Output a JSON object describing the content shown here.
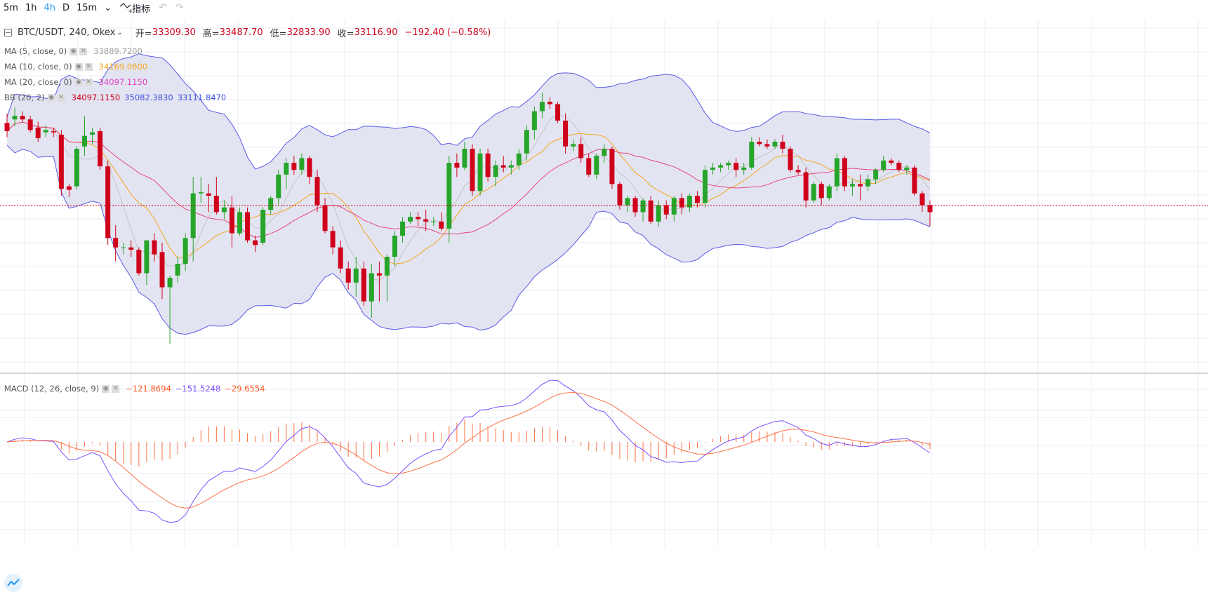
{
  "toolbar": {
    "timeframes": [
      "5m",
      "1h",
      "4h",
      "D",
      "15m"
    ],
    "active": "4h",
    "indicators_label": "指标",
    "undo_icon": "undo-icon",
    "redo_icon": "redo-icon"
  },
  "header": {
    "symbol": "BTC/USDT, 240, Okex",
    "open_label": "开=",
    "open": "33309.30",
    "high_label": "高=",
    "high": "33487.70",
    "low_label": "低=",
    "low": "32833.90",
    "close_label": "收=",
    "close": "33116.90",
    "change": "−192.40 (−0.58%)"
  },
  "indicators": [
    {
      "name": "MA (5, close, 0)",
      "values": [
        "33889.7200"
      ],
      "colors": [
        "#9e9e9e"
      ]
    },
    {
      "name": "MA (10, close, 0)",
      "values": [
        "34169.0600"
      ],
      "colors": [
        "#f5a623"
      ]
    },
    {
      "name": "MA (20, close, 0)",
      "values": [
        "34097.1150"
      ],
      "colors": [
        "#e040c0"
      ]
    },
    {
      "name": "BB (20, 2)",
      "values": [
        "34097.1150",
        "35082.3830",
        "33111.8470"
      ],
      "colors": [
        "#d0021b",
        "#3f51e0",
        "#3f51e0"
      ]
    }
  ],
  "macd": {
    "name": "MACD (12, 26, close, 9)",
    "values": [
      "−121.8694",
      "−151.5248",
      "−29.6554"
    ],
    "colors": [
      "#ff5722",
      "#7c4dff",
      "#ff5722"
    ]
  },
  "colors": {
    "up": "#26a52a",
    "down": "#d0021b",
    "bb_fill": "#e3e4f1",
    "bb_line": "#5a5ae8",
    "ma5": "#c4c4c4",
    "ma10": "#f5a623",
    "ma20": "#e8467c",
    "macd": "#7c4dff",
    "signal": "#ff7043",
    "grid": "#e8eef4"
  },
  "chart_data": {
    "type": "candlestick",
    "note_units": "price",
    "candles": [
      {
        "o": 33820,
        "h": 33900,
        "l": 33700,
        "c": 33750
      },
      {
        "o": 33850,
        "h": 33950,
        "l": 33790,
        "c": 33880
      },
      {
        "o": 33880,
        "h": 33920,
        "l": 33830,
        "c": 33850
      },
      {
        "o": 33850,
        "h": 33880,
        "l": 33740,
        "c": 33760
      },
      {
        "o": 33780,
        "h": 33830,
        "l": 33660,
        "c": 33690
      },
      {
        "o": 33740,
        "h": 33800,
        "l": 33700,
        "c": 33760
      },
      {
        "o": 33750,
        "h": 33780,
        "l": 33700,
        "c": 33740
      },
      {
        "o": 33720,
        "h": 33760,
        "l": 33200,
        "c": 33260
      },
      {
        "o": 33280,
        "h": 33300,
        "l": 33190,
        "c": 33250
      },
      {
        "o": 33280,
        "h": 33620,
        "l": 33250,
        "c": 33600
      },
      {
        "o": 33620,
        "h": 33880,
        "l": 33540,
        "c": 33710
      },
      {
        "o": 33720,
        "h": 33780,
        "l": 33640,
        "c": 33740
      },
      {
        "o": 33750,
        "h": 33780,
        "l": 33420,
        "c": 33450
      },
      {
        "o": 33450,
        "h": 33500,
        "l": 32780,
        "c": 32840
      },
      {
        "o": 32840,
        "h": 32950,
        "l": 32640,
        "c": 32760
      },
      {
        "o": 32760,
        "h": 32800,
        "l": 32700,
        "c": 32760
      },
      {
        "o": 32760,
        "h": 32820,
        "l": 32680,
        "c": 32740
      },
      {
        "o": 32740,
        "h": 32760,
        "l": 32520,
        "c": 32540
      },
      {
        "o": 32540,
        "h": 32800,
        "l": 32440,
        "c": 32820
      },
      {
        "o": 32820,
        "h": 32880,
        "l": 32640,
        "c": 32700
      },
      {
        "o": 32720,
        "h": 32800,
        "l": 32320,
        "c": 32420
      },
      {
        "o": 32420,
        "h": 32520,
        "l": 31940,
        "c": 32500
      },
      {
        "o": 32520,
        "h": 32680,
        "l": 32460,
        "c": 32620
      },
      {
        "o": 32620,
        "h": 32880,
        "l": 32560,
        "c": 32840
      },
      {
        "o": 32840,
        "h": 33360,
        "l": 32640,
        "c": 33220
      },
      {
        "o": 33220,
        "h": 33360,
        "l": 33140,
        "c": 33230
      },
      {
        "o": 33220,
        "h": 33300,
        "l": 33060,
        "c": 33200
      },
      {
        "o": 33200,
        "h": 33360,
        "l": 33040,
        "c": 33060
      },
      {
        "o": 33060,
        "h": 33160,
        "l": 33000,
        "c": 33100
      },
      {
        "o": 33100,
        "h": 33200,
        "l": 32760,
        "c": 32880
      },
      {
        "o": 32880,
        "h": 33100,
        "l": 32860,
        "c": 33060
      },
      {
        "o": 33060,
        "h": 33100,
        "l": 32800,
        "c": 32820
      },
      {
        "o": 32820,
        "h": 32860,
        "l": 32720,
        "c": 32780
      },
      {
        "o": 32800,
        "h": 33100,
        "l": 32780,
        "c": 33080
      },
      {
        "o": 33080,
        "h": 33200,
        "l": 33040,
        "c": 33180
      },
      {
        "o": 33180,
        "h": 33420,
        "l": 33120,
        "c": 33380
      },
      {
        "o": 33380,
        "h": 33520,
        "l": 33260,
        "c": 33480
      },
      {
        "o": 33480,
        "h": 33540,
        "l": 33380,
        "c": 33420
      },
      {
        "o": 33420,
        "h": 33560,
        "l": 33380,
        "c": 33520
      },
      {
        "o": 33520,
        "h": 33540,
        "l": 33300,
        "c": 33360
      },
      {
        "o": 33360,
        "h": 33420,
        "l": 33060,
        "c": 33120
      },
      {
        "o": 33120,
        "h": 33180,
        "l": 32880,
        "c": 32900
      },
      {
        "o": 32900,
        "h": 32940,
        "l": 32700,
        "c": 32760
      },
      {
        "o": 32760,
        "h": 32820,
        "l": 32540,
        "c": 32580
      },
      {
        "o": 32580,
        "h": 32640,
        "l": 32400,
        "c": 32460
      },
      {
        "o": 32460,
        "h": 32680,
        "l": 32340,
        "c": 32580
      },
      {
        "o": 32580,
        "h": 32640,
        "l": 32260,
        "c": 32300
      },
      {
        "o": 32300,
        "h": 32620,
        "l": 32160,
        "c": 32540
      },
      {
        "o": 32540,
        "h": 32640,
        "l": 32300,
        "c": 32520
      },
      {
        "o": 32520,
        "h": 32700,
        "l": 32300,
        "c": 32680
      },
      {
        "o": 32680,
        "h": 32900,
        "l": 32600,
        "c": 32860
      },
      {
        "o": 32860,
        "h": 33020,
        "l": 32800,
        "c": 32980
      },
      {
        "o": 32980,
        "h": 33060,
        "l": 32960,
        "c": 33020
      },
      {
        "o": 33020,
        "h": 33060,
        "l": 32940,
        "c": 33000
      },
      {
        "o": 33000,
        "h": 33080,
        "l": 32900,
        "c": 32980
      },
      {
        "o": 32980,
        "h": 33020,
        "l": 32940,
        "c": 32980
      },
      {
        "o": 32980,
        "h": 33060,
        "l": 32900,
        "c": 32920
      },
      {
        "o": 32920,
        "h": 33540,
        "l": 32800,
        "c": 33480
      },
      {
        "o": 33480,
        "h": 33560,
        "l": 33360,
        "c": 33440
      },
      {
        "o": 33440,
        "h": 33660,
        "l": 33420,
        "c": 33600
      },
      {
        "o": 33600,
        "h": 33640,
        "l": 33200,
        "c": 33240
      },
      {
        "o": 33240,
        "h": 33600,
        "l": 33200,
        "c": 33560
      },
      {
        "o": 33560,
        "h": 33600,
        "l": 33320,
        "c": 33360
      },
      {
        "o": 33360,
        "h": 33500,
        "l": 33280,
        "c": 33460
      },
      {
        "o": 33460,
        "h": 33540,
        "l": 33400,
        "c": 33440
      },
      {
        "o": 33440,
        "h": 33500,
        "l": 33380,
        "c": 33460
      },
      {
        "o": 33460,
        "h": 33600,
        "l": 33420,
        "c": 33560
      },
      {
        "o": 33560,
        "h": 33800,
        "l": 33500,
        "c": 33760
      },
      {
        "o": 33760,
        "h": 33960,
        "l": 33680,
        "c": 33920
      },
      {
        "o": 33920,
        "h": 34080,
        "l": 33860,
        "c": 34000
      },
      {
        "o": 34000,
        "h": 34040,
        "l": 33940,
        "c": 33980
      },
      {
        "o": 33980,
        "h": 34000,
        "l": 33820,
        "c": 33840
      },
      {
        "o": 33840,
        "h": 33900,
        "l": 33560,
        "c": 33620
      },
      {
        "o": 33620,
        "h": 33680,
        "l": 33580,
        "c": 33640
      },
      {
        "o": 33640,
        "h": 33700,
        "l": 33480,
        "c": 33520
      },
      {
        "o": 33520,
        "h": 33560,
        "l": 33360,
        "c": 33380
      },
      {
        "o": 33380,
        "h": 33560,
        "l": 33340,
        "c": 33540
      },
      {
        "o": 33540,
        "h": 33640,
        "l": 33480,
        "c": 33600
      },
      {
        "o": 33600,
        "h": 33620,
        "l": 33260,
        "c": 33300
      },
      {
        "o": 33300,
        "h": 33320,
        "l": 33080,
        "c": 33120
      },
      {
        "o": 33120,
        "h": 33200,
        "l": 33060,
        "c": 33180
      },
      {
        "o": 33180,
        "h": 33200,
        "l": 33020,
        "c": 33060
      },
      {
        "o": 33060,
        "h": 33180,
        "l": 32980,
        "c": 33160
      },
      {
        "o": 33160,
        "h": 33200,
        "l": 32960,
        "c": 32980
      },
      {
        "o": 32980,
        "h": 33160,
        "l": 32940,
        "c": 33120
      },
      {
        "o": 33120,
        "h": 33160,
        "l": 33000,
        "c": 33040
      },
      {
        "o": 33040,
        "h": 33200,
        "l": 32980,
        "c": 33180
      },
      {
        "o": 33180,
        "h": 33220,
        "l": 33040,
        "c": 33100
      },
      {
        "o": 33100,
        "h": 33220,
        "l": 33060,
        "c": 33200
      },
      {
        "o": 33200,
        "h": 33240,
        "l": 33100,
        "c": 33140
      },
      {
        "o": 33140,
        "h": 33460,
        "l": 33100,
        "c": 33420
      },
      {
        "o": 33420,
        "h": 33480,
        "l": 33380,
        "c": 33440
      },
      {
        "o": 33440,
        "h": 33480,
        "l": 33400,
        "c": 33460
      },
      {
        "o": 33460,
        "h": 33500,
        "l": 33420,
        "c": 33480
      },
      {
        "o": 33480,
        "h": 33520,
        "l": 33360,
        "c": 33420
      },
      {
        "o": 33420,
        "h": 33480,
        "l": 33380,
        "c": 33440
      },
      {
        "o": 33440,
        "h": 33700,
        "l": 33420,
        "c": 33660
      },
      {
        "o": 33660,
        "h": 33700,
        "l": 33620,
        "c": 33640
      },
      {
        "o": 33640,
        "h": 33680,
        "l": 33600,
        "c": 33620
      },
      {
        "o": 33620,
        "h": 33680,
        "l": 33600,
        "c": 33660
      },
      {
        "o": 33660,
        "h": 33720,
        "l": 33560,
        "c": 33600
      },
      {
        "o": 33600,
        "h": 33620,
        "l": 33400,
        "c": 33420
      },
      {
        "o": 33420,
        "h": 33460,
        "l": 33380,
        "c": 33400
      },
      {
        "o": 33400,
        "h": 33440,
        "l": 33100,
        "c": 33160
      },
      {
        "o": 33160,
        "h": 33320,
        "l": 33140,
        "c": 33300
      },
      {
        "o": 33300,
        "h": 33320,
        "l": 33120,
        "c": 33180
      },
      {
        "o": 33180,
        "h": 33300,
        "l": 33160,
        "c": 33280
      },
      {
        "o": 33280,
        "h": 33560,
        "l": 33240,
        "c": 33520
      },
      {
        "o": 33520,
        "h": 33540,
        "l": 33240,
        "c": 33280
      },
      {
        "o": 33280,
        "h": 33340,
        "l": 33200,
        "c": 33300
      },
      {
        "o": 33300,
        "h": 33380,
        "l": 33160,
        "c": 33280
      },
      {
        "o": 33280,
        "h": 33380,
        "l": 33240,
        "c": 33340
      },
      {
        "o": 33340,
        "h": 33440,
        "l": 33300,
        "c": 33420
      },
      {
        "o": 33420,
        "h": 33540,
        "l": 33400,
        "c": 33500
      },
      {
        "o": 33500,
        "h": 33520,
        "l": 33460,
        "c": 33480
      },
      {
        "o": 33480,
        "h": 33500,
        "l": 33400,
        "c": 33420
      },
      {
        "o": 33420,
        "h": 33460,
        "l": 33380,
        "c": 33440
      },
      {
        "o": 33440,
        "h": 33460,
        "l": 33200,
        "c": 33220
      },
      {
        "o": 33220,
        "h": 33240,
        "l": 33060,
        "c": 33120
      },
      {
        "o": 33120,
        "h": 33160,
        "l": 32940,
        "c": 33060
      }
    ],
    "y_range": [
      31700,
      34700
    ],
    "last_price": 33116.9
  }
}
